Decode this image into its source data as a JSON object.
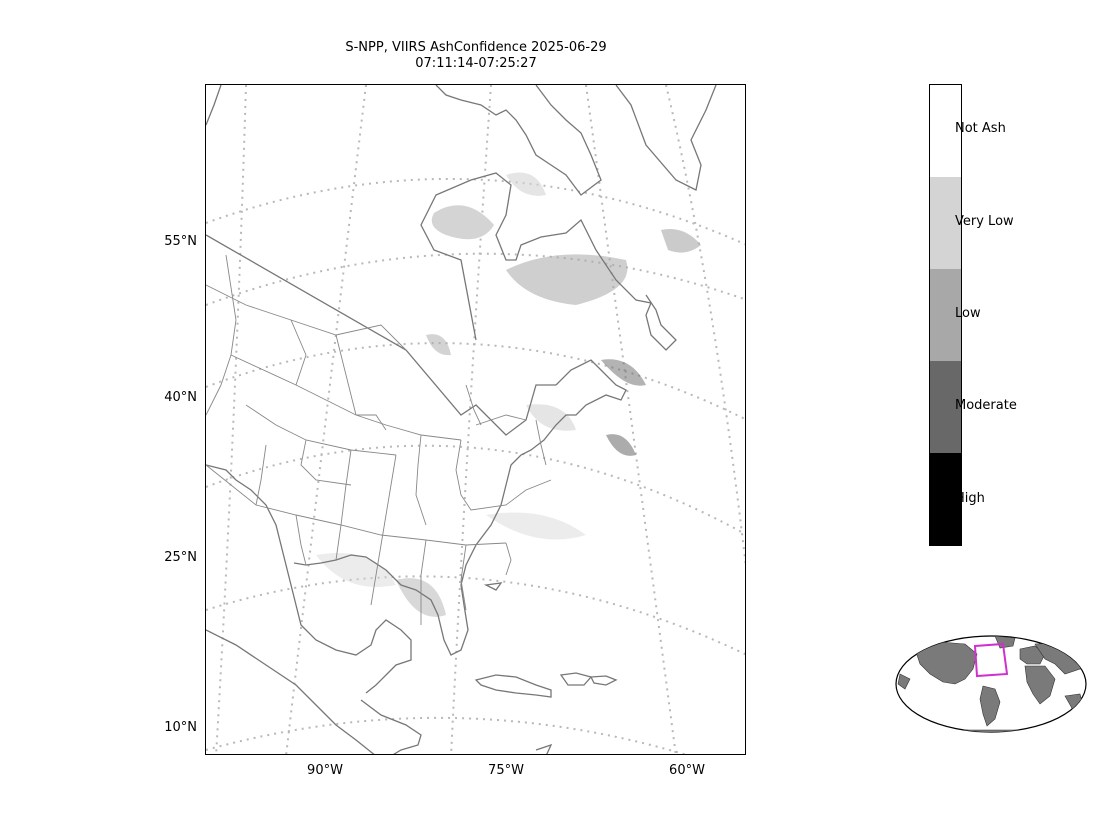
{
  "title": {
    "line1": "S-NPP, VIIRS AshConfidence 2025-06-29",
    "line2": "07:11:14-07:25:27"
  },
  "axes": {
    "lat_labels": [
      "55°N",
      "40°N",
      "25°N",
      "10°N"
    ],
    "lon_labels": [
      "90°W",
      "75°W",
      "60°W"
    ]
  },
  "colorbar": {
    "categories": [
      {
        "label": "Not Ash",
        "color": "#ffffff"
      },
      {
        "label": "Very Low",
        "color": "#d4d4d4"
      },
      {
        "label": "Low",
        "color": "#a8a8a8"
      },
      {
        "label": "Moderate",
        "color": "#686868"
      },
      {
        "label": "High",
        "color": "#000000"
      }
    ]
  },
  "colors": {
    "coastline": "#777777",
    "gridline": "#b8b8b8",
    "inset_land": "#7a7a7a",
    "inset_box": "#d030d0"
  }
}
